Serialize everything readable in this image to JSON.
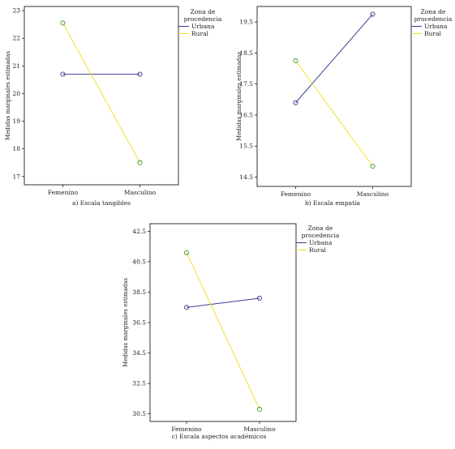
{
  "chart_data": [
    {
      "type": "line",
      "caption": "a) Escala tangibles",
      "ylabel": "Medidas marginales estimadas",
      "categories": [
        "Femenino",
        "Masculino"
      ],
      "ylim": [
        16.7,
        23.15
      ],
      "yticks": [
        17,
        18,
        19,
        20,
        21,
        22,
        23
      ],
      "ytick_labels": [
        "17",
        "18",
        "19",
        "20",
        "21",
        "22",
        "23"
      ],
      "legend_title": "Zona de procedencia",
      "legend_title_lines": [
        "Zona de",
        "procedencia"
      ],
      "series": [
        {
          "name": "Urbana",
          "values": [
            20.7,
            20.7
          ],
          "color": "#3b3b8f",
          "marker": "#3b3b8f"
        },
        {
          "name": "Rural",
          "values": [
            22.55,
            17.5
          ],
          "color": "#f2e22a",
          "marker": "#3e9b3e"
        }
      ]
    },
    {
      "type": "line",
      "caption": "b) Escala empatía",
      "ylabel": "Medidas marginales estimadas",
      "categories": [
        "Femenino",
        "Masculino"
      ],
      "ylim": [
        14.2,
        20.0
      ],
      "yticks": [
        14.5,
        15.5,
        16.5,
        17.5,
        18.5,
        19.5
      ],
      "ytick_labels": [
        "14.5",
        "15.5",
        "16.5",
        "17.5",
        "18.5",
        "19.5"
      ],
      "legend_title": "Zona de procedencia",
      "legend_title_lines": [
        "Zona de",
        "procedencia"
      ],
      "series": [
        {
          "name": "Urbana",
          "values": [
            16.9,
            19.75
          ],
          "color": "#3b3b8f",
          "marker": "#3b3b8f"
        },
        {
          "name": "Rural",
          "values": [
            18.25,
            14.85
          ],
          "color": "#f2e22a",
          "marker": "#3e9b3e"
        }
      ]
    },
    {
      "type": "line",
      "caption": "c) Escala aspectos académicos",
      "ylabel": "Medidas marginales estimadas",
      "categories": [
        "Femenino",
        "Masculino"
      ],
      "ylim": [
        30.0,
        43.0
      ],
      "yticks": [
        30.5,
        32.5,
        34.5,
        36.5,
        38.5,
        40.5,
        42.5
      ],
      "ytick_labels": [
        "30.5",
        "32.5",
        "34.5",
        "36.5",
        "38.5",
        "40.5",
        "42.5"
      ],
      "legend_title": "Zona de procedencia",
      "legend_title_lines": [
        "Zona de",
        "procedencia"
      ],
      "series": [
        {
          "name": "Urbana",
          "values": [
            37.5,
            38.1
          ],
          "color": "#3b3b8f",
          "marker": "#3b3b8f"
        },
        {
          "name": "Rural",
          "values": [
            41.1,
            30.8
          ],
          "color": "#f2e22a",
          "marker": "#3e9b3e"
        }
      ]
    }
  ]
}
